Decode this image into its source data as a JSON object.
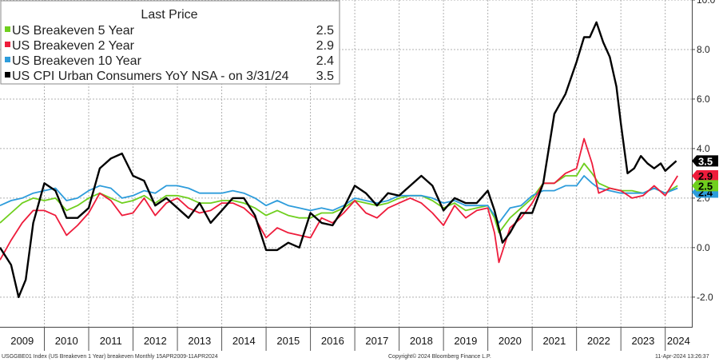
{
  "chart_data": {
    "type": "line",
    "title": "",
    "legend": {
      "header": "Last Price",
      "position": "top-left"
    },
    "y_axis": {
      "min": -3.2,
      "max": 10.0,
      "ticks": [
        -2.0,
        0.0,
        2.0,
        4.0,
        6.0,
        8.0,
        10.0
      ],
      "tick_labels": [
        "-2.0",
        "0.0",
        "2.0",
        "4.0",
        "6.0",
        "8.0",
        "10.0"
      ],
      "side": "right"
    },
    "x_axis": {
      "start": 2009.0,
      "end": 2024.6,
      "year_labels": [
        "2009",
        "2010",
        "2011",
        "2012",
        "2013",
        "2014",
        "2015",
        "2016",
        "2017",
        "2018",
        "2019",
        "2020",
        "2021",
        "2022",
        "2023",
        "2024"
      ]
    },
    "series": [
      {
        "name": "US Breakeven 5 Year",
        "legend_label": "US Breakeven 5 Year",
        "last_value": "2.5",
        "color": "#6fcf1e",
        "x": [
          2009.0,
          2009.25,
          2009.5,
          2009.75,
          2010.0,
          2010.25,
          2010.5,
          2010.75,
          2011.0,
          2011.25,
          2011.5,
          2011.75,
          2012.0,
          2012.25,
          2012.5,
          2012.75,
          2013.0,
          2013.25,
          2013.5,
          2013.75,
          2014.0,
          2014.25,
          2014.5,
          2014.75,
          2015.0,
          2015.25,
          2015.5,
          2015.75,
          2016.0,
          2016.25,
          2016.5,
          2016.75,
          2017.0,
          2017.25,
          2017.5,
          2017.75,
          2018.0,
          2018.25,
          2018.5,
          2018.75,
          2019.0,
          2019.25,
          2019.5,
          2019.75,
          2020.0,
          2020.15,
          2020.25,
          2020.5,
          2020.75,
          2021.0,
          2021.25,
          2021.5,
          2021.75,
          2022.0,
          2022.17,
          2022.35,
          2022.5,
          2022.75,
          2023.0,
          2023.25,
          2023.5,
          2023.75,
          2024.0,
          2024.28
        ],
        "values": [
          1.0,
          1.4,
          1.8,
          2.0,
          1.9,
          2.0,
          1.5,
          1.7,
          2.0,
          2.2,
          2.0,
          1.8,
          1.9,
          2.1,
          1.8,
          2.1,
          2.1,
          2.0,
          1.8,
          1.8,
          1.9,
          1.9,
          1.8,
          1.6,
          1.3,
          1.5,
          1.3,
          1.2,
          1.2,
          1.4,
          1.4,
          1.6,
          1.9,
          1.8,
          1.7,
          1.8,
          2.0,
          2.1,
          2.1,
          1.9,
          1.6,
          1.8,
          1.5,
          1.6,
          1.7,
          1.2,
          0.6,
          1.2,
          1.6,
          2.0,
          2.6,
          2.6,
          2.9,
          2.9,
          3.4,
          3.0,
          2.6,
          2.4,
          2.3,
          2.3,
          2.2,
          2.4,
          2.2,
          2.5
        ]
      },
      {
        "name": "US Breakeven 2 Year",
        "legend_label": "US Breakeven 2 Year",
        "last_value": "2.9",
        "color": "#ee1c3b",
        "x": [
          2009.0,
          2009.25,
          2009.5,
          2009.75,
          2010.0,
          2010.25,
          2010.5,
          2010.75,
          2011.0,
          2011.25,
          2011.5,
          2011.75,
          2012.0,
          2012.25,
          2012.5,
          2012.75,
          2013.0,
          2013.25,
          2013.5,
          2013.75,
          2014.0,
          2014.25,
          2014.5,
          2014.75,
          2015.0,
          2015.25,
          2015.5,
          2015.75,
          2016.0,
          2016.25,
          2016.5,
          2016.75,
          2017.0,
          2017.25,
          2017.5,
          2017.75,
          2018.0,
          2018.25,
          2018.5,
          2018.75,
          2019.0,
          2019.25,
          2019.5,
          2019.75,
          2020.0,
          2020.15,
          2020.25,
          2020.5,
          2020.75,
          2021.0,
          2021.25,
          2021.5,
          2021.75,
          2022.0,
          2022.17,
          2022.35,
          2022.5,
          2022.75,
          2023.0,
          2023.25,
          2023.5,
          2023.75,
          2024.0,
          2024.28
        ],
        "values": [
          -0.5,
          0.3,
          1.0,
          1.5,
          1.5,
          1.3,
          0.5,
          0.9,
          1.4,
          2.2,
          1.9,
          1.3,
          1.4,
          2.0,
          1.3,
          1.8,
          2.0,
          1.6,
          1.4,
          1.5,
          1.8,
          1.8,
          1.6,
          1.2,
          0.4,
          0.8,
          0.6,
          0.5,
          0.4,
          1.2,
          1.0,
          1.4,
          1.9,
          1.4,
          1.2,
          1.6,
          1.8,
          2.0,
          1.8,
          1.4,
          0.9,
          1.7,
          1.2,
          1.5,
          1.6,
          0.6,
          -0.6,
          0.8,
          1.2,
          1.8,
          2.6,
          2.6,
          3.0,
          3.2,
          4.4,
          3.4,
          2.2,
          2.4,
          2.3,
          2.0,
          2.1,
          2.5,
          2.1,
          2.9
        ]
      },
      {
        "name": "US Breakeven 10 Year",
        "legend_label": "US Breakeven 10 Year",
        "last_value": "2.4",
        "color": "#2d9cdb",
        "x": [
          2009.0,
          2009.25,
          2009.5,
          2009.75,
          2010.0,
          2010.25,
          2010.5,
          2010.75,
          2011.0,
          2011.25,
          2011.5,
          2011.75,
          2012.0,
          2012.25,
          2012.5,
          2012.75,
          2013.0,
          2013.25,
          2013.5,
          2013.75,
          2014.0,
          2014.25,
          2014.5,
          2014.75,
          2015.0,
          2015.25,
          2015.5,
          2015.75,
          2016.0,
          2016.25,
          2016.5,
          2016.75,
          2017.0,
          2017.25,
          2017.5,
          2017.75,
          2018.0,
          2018.25,
          2018.5,
          2018.75,
          2019.0,
          2019.25,
          2019.5,
          2019.75,
          2020.0,
          2020.15,
          2020.25,
          2020.5,
          2020.75,
          2021.0,
          2021.25,
          2021.5,
          2021.75,
          2022.0,
          2022.17,
          2022.35,
          2022.5,
          2022.75,
          2023.0,
          2023.25,
          2023.5,
          2023.75,
          2024.0,
          2024.28
        ],
        "values": [
          1.7,
          1.9,
          2.0,
          2.2,
          2.3,
          2.4,
          1.9,
          2.0,
          2.3,
          2.5,
          2.4,
          2.0,
          2.1,
          2.3,
          2.2,
          2.5,
          2.5,
          2.4,
          2.2,
          2.2,
          2.2,
          2.3,
          2.2,
          2.0,
          1.7,
          1.9,
          1.7,
          1.6,
          1.5,
          1.6,
          1.5,
          1.7,
          2.0,
          1.9,
          1.8,
          1.9,
          2.1,
          2.1,
          2.1,
          2.0,
          1.8,
          1.9,
          1.7,
          1.7,
          1.7,
          1.3,
          1.0,
          1.6,
          1.7,
          2.1,
          2.3,
          2.3,
          2.5,
          2.5,
          2.9,
          2.6,
          2.4,
          2.3,
          2.2,
          2.2,
          2.2,
          2.4,
          2.2,
          2.4
        ]
      },
      {
        "name": "US CPI Urban Consumers YoY NSA",
        "legend_label": "US CPI Urban Consumers YoY NSA -   on 3/31/24",
        "last_value": "3.5",
        "color": "#000000",
        "x": [
          2009.0,
          2009.25,
          2009.42,
          2009.58,
          2009.75,
          2010.0,
          2010.25,
          2010.5,
          2010.75,
          2011.0,
          2011.25,
          2011.5,
          2011.75,
          2012.0,
          2012.25,
          2012.5,
          2012.75,
          2013.0,
          2013.25,
          2013.5,
          2013.75,
          2014.0,
          2014.25,
          2014.5,
          2014.75,
          2015.0,
          2015.25,
          2015.5,
          2015.75,
          2016.0,
          2016.25,
          2016.5,
          2016.75,
          2017.0,
          2017.25,
          2017.5,
          2017.75,
          2018.0,
          2018.25,
          2018.5,
          2018.75,
          2019.0,
          2019.25,
          2019.5,
          2019.75,
          2020.0,
          2020.15,
          2020.33,
          2020.5,
          2020.75,
          2021.0,
          2021.25,
          2021.5,
          2021.75,
          2022.0,
          2022.17,
          2022.3,
          2022.45,
          2022.6,
          2022.75,
          2022.9,
          2023.0,
          2023.15,
          2023.3,
          2023.45,
          2023.6,
          2023.75,
          2023.9,
          2024.0,
          2024.25
        ],
        "values": [
          0.0,
          -0.7,
          -2.0,
          -1.3,
          1.0,
          2.6,
          2.3,
          1.2,
          1.2,
          1.6,
          3.2,
          3.6,
          3.8,
          2.9,
          2.7,
          1.7,
          2.0,
          1.6,
          1.2,
          1.8,
          1.0,
          1.5,
          2.0,
          2.0,
          1.3,
          -0.1,
          -0.1,
          0.2,
          0.0,
          1.4,
          1.0,
          0.9,
          1.6,
          2.5,
          2.2,
          1.7,
          2.2,
          2.1,
          2.5,
          2.9,
          2.5,
          1.5,
          2.0,
          1.8,
          1.8,
          2.3,
          1.5,
          0.2,
          0.6,
          1.4,
          1.4,
          2.6,
          5.4,
          6.2,
          7.5,
          8.5,
          8.5,
          9.1,
          8.3,
          7.7,
          6.5,
          5.0,
          3.0,
          3.2,
          3.7,
          3.4,
          3.2,
          3.4,
          3.1,
          3.5
        ]
      }
    ],
    "footer": {
      "left": "USGGBE01 Index (US Breakeven 1 Year) breakeven  Monthly 15APR2009-11APR2024",
      "center": "Copyright© 2024 Bloomberg Finance L.P.",
      "right": "11-Apr-2024 13:26:37"
    }
  }
}
